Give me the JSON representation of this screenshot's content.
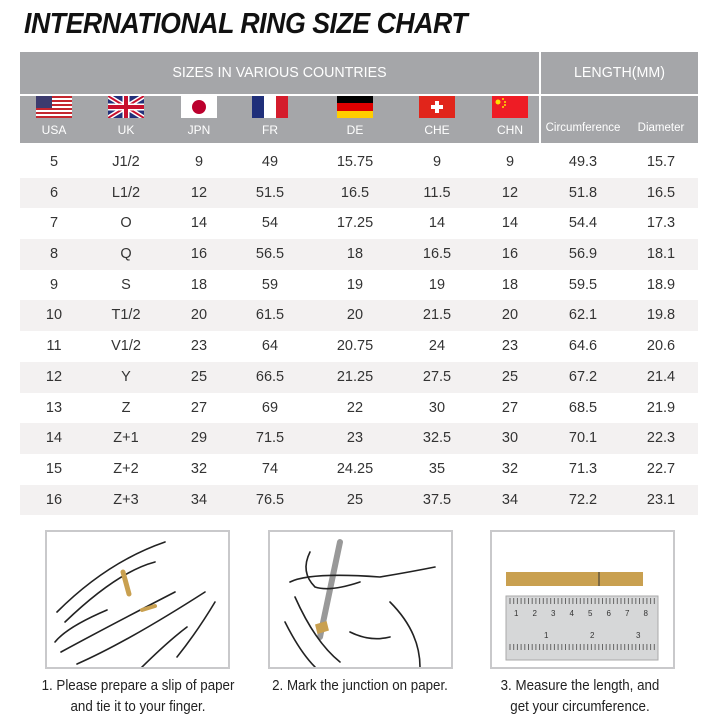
{
  "title": "INTERNATIONAL RING SIZE CHART",
  "header": {
    "sizes_title": "SIZES IN VARIOUS COUNTRIES",
    "length_title": "LENGTH(MM)",
    "columns": [
      {
        "label": "USA",
        "flag": "usa-flag-icon"
      },
      {
        "label": "UK",
        "flag": "uk-flag-icon"
      },
      {
        "label": "JPN",
        "flag": "japan-flag-icon"
      },
      {
        "label": "FR",
        "flag": "france-flag-icon"
      },
      {
        "label": "DE",
        "flag": "germany-flag-icon"
      },
      {
        "label": "CHE",
        "flag": "switzerland-flag-icon"
      },
      {
        "label": "CHN",
        "flag": "china-flag-icon"
      },
      {
        "label": "Circumference"
      },
      {
        "label": "Diameter"
      }
    ]
  },
  "rows": [
    [
      "5",
      "J1/2",
      "9",
      "49",
      "15.75",
      "9",
      "9",
      "49.3",
      "15.7"
    ],
    [
      "6",
      "L1/2",
      "12",
      "51.5",
      "16.5",
      "11.5",
      "12",
      "51.8",
      "16.5"
    ],
    [
      "7",
      "O",
      "14",
      "54",
      "17.25",
      "14",
      "14",
      "54.4",
      "17.3"
    ],
    [
      "8",
      "Q",
      "16",
      "56.5",
      "18",
      "16.5",
      "16",
      "56.9",
      "18.1"
    ],
    [
      "9",
      "S",
      "18",
      "59",
      "19",
      "19",
      "18",
      "59.5",
      "18.9"
    ],
    [
      "10",
      "T1/2",
      "20",
      "61.5",
      "20",
      "21.5",
      "20",
      "62.1",
      "19.8"
    ],
    [
      "11",
      "V1/2",
      "23",
      "64",
      "20.75",
      "24",
      "23",
      "64.6",
      "20.6"
    ],
    [
      "12",
      "Y",
      "25",
      "66.5",
      "21.25",
      "27.5",
      "25",
      "67.2",
      "21.4"
    ],
    [
      "13",
      "Z",
      "27",
      "69",
      "22",
      "30",
      "27",
      "68.5",
      "21.9"
    ],
    [
      "14",
      "Z+1",
      "29",
      "71.5",
      "23",
      "32.5",
      "30",
      "70.1",
      "22.3"
    ],
    [
      "15",
      "Z+2",
      "32",
      "74",
      "24.25",
      "35",
      "32",
      "71.3",
      "22.7"
    ],
    [
      "16",
      "Z+3",
      "34",
      "76.5",
      "25",
      "37.5",
      "34",
      "72.2",
      "23.1"
    ]
  ],
  "steps": [
    {
      "caption": [
        "1. Please prepare a slip of paper",
        "and tie it to your finger."
      ]
    },
    {
      "caption": [
        "2. Mark the junction on paper."
      ]
    },
    {
      "caption": [
        "3. Measure the length, and",
        "get your circumference."
      ]
    }
  ],
  "ruler": {
    "top_ticks": [
      "1",
      "2",
      "3",
      "4",
      "5",
      "6",
      "7",
      "8"
    ],
    "bottom_ticks": [
      "1",
      "2",
      "3"
    ]
  },
  "colors": {
    "header_bg": "#a5a6a9",
    "paper": "#c9a050"
  }
}
